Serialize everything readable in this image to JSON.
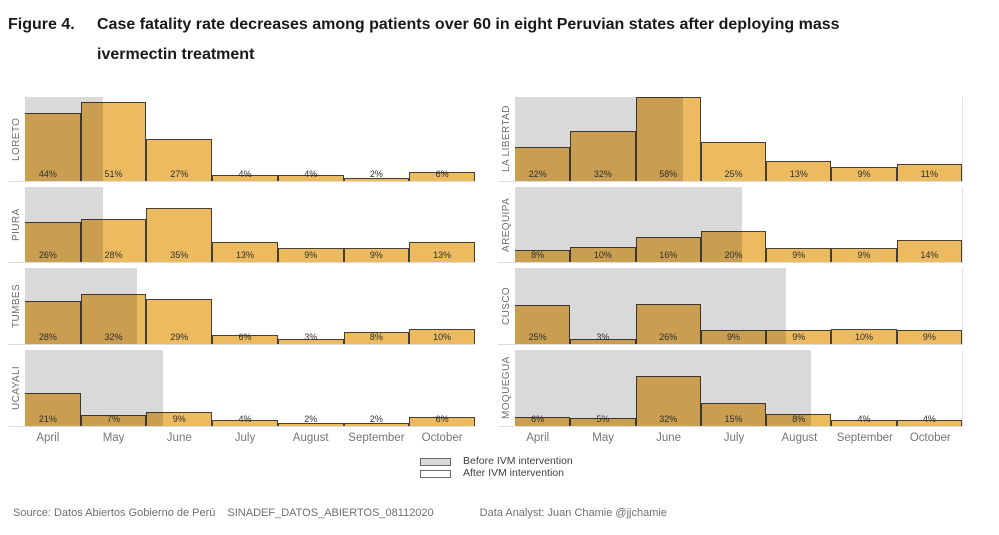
{
  "title": {
    "label": "Figure 4.",
    "line1": "Case fatality rate decreases among patients over 60 in eight Peruvian states after deploying mass",
    "line2": "ivermectin treatment"
  },
  "source": {
    "attribution": "Source: Datos Abiertos Gobierno de Perú",
    "dataset": "SINADEF_DATOS_ABIERTOS_08112020",
    "analyst": "Data Analyst: Juan Chamie  @jjchamie"
  },
  "chart_data": {
    "type": "bar",
    "title": "Figure 4. Case fatality rate decreases among patients over 60 in eight Peruvian states after deploying mass ivermectin treatment",
    "x": [
      "April",
      "May",
      "June",
      "July",
      "August",
      "September",
      "October"
    ],
    "unit": "%",
    "ylim": [
      0,
      58
    ],
    "grid": false,
    "legend_position": "bottom-center",
    "legend": [
      {
        "label": "Before IVM intervention",
        "fill": "#D9D9D9"
      },
      {
        "label": "After IVM intervention",
        "fill": "#FFFFFF"
      }
    ],
    "colors": {
      "bar": "#ECBA5F",
      "bar_border": "#473F35",
      "before_region": "#D9D9D9"
    },
    "columns": [
      {
        "panels": [
          {
            "state": "LORETO",
            "values": [
              44,
              51,
              27,
              4,
              4,
              2,
              6
            ],
            "before_end_frac": 0.173
          },
          {
            "state": "PIURA",
            "values": [
              26,
              28,
              35,
              13,
              9,
              9,
              13
            ],
            "before_end_frac": 0.173
          },
          {
            "state": "TUMBES",
            "values": [
              28,
              32,
              29,
              6,
              3,
              8,
              10
            ],
            "before_end_frac": 0.249
          },
          {
            "state": "UCAYALI",
            "values": [
              21,
              7,
              9,
              4,
              2,
              2,
              6
            ],
            "before_end_frac": 0.307
          }
        ]
      },
      {
        "panels": [
          {
            "state": "LA LIBERTAD",
            "values": [
              22,
              32,
              58,
              25,
              13,
              9,
              11
            ],
            "before_end_frac": 0.375
          },
          {
            "state": "AREQUIPA",
            "values": [
              8,
              10,
              16,
              20,
              9,
              9,
              14
            ],
            "before_end_frac": 0.507
          },
          {
            "state": "CUSCO",
            "values": [
              25,
              3,
              26,
              9,
              9,
              10,
              9
            ],
            "before_end_frac": 0.607
          },
          {
            "state": "MOQUEGUA",
            "values": [
              6,
              5,
              32,
              15,
              8,
              4,
              4
            ],
            "before_end_frac": 0.663
          }
        ]
      }
    ]
  }
}
